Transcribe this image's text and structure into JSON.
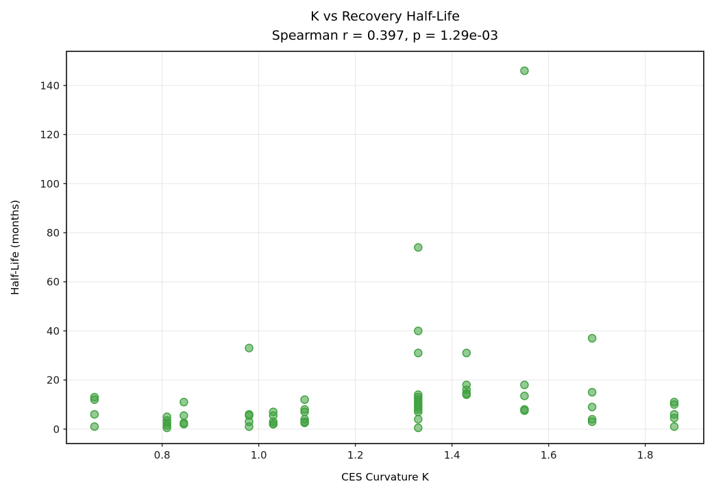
{
  "figure": {
    "background": "#ffffff",
    "title_line1": "K vs Recovery Half-Life",
    "title_line2": "Spearman r = 0.397, p = 1.29e-03"
  },
  "chart_data": {
    "type": "scatter",
    "title": "K vs Recovery Half-Life",
    "subtitle": "Spearman r = 0.397, p = 1.29e-03",
    "xlabel": "CES Curvature K",
    "ylabel": "Half-Life (months)",
    "xlim": [
      0.602,
      1.921
    ],
    "ylim": [
      -5.9,
      153.9
    ],
    "x_ticks": [
      0.8,
      1.0,
      1.2,
      1.4,
      1.6,
      1.8
    ],
    "x_tick_labels": [
      "0.8",
      "1.0",
      "1.2",
      "1.4",
      "1.6",
      "1.8"
    ],
    "y_ticks": [
      0,
      20,
      40,
      60,
      80,
      100,
      120,
      140
    ],
    "y_tick_labels": [
      "0",
      "20",
      "40",
      "60",
      "80",
      "100",
      "120",
      "140"
    ],
    "grid": true,
    "legend": false,
    "stats": {
      "spearman_r": 0.397,
      "p_value": "1.29e-03"
    },
    "marker": {
      "shape": "circle",
      "color": "#3ca03c",
      "fill_opacity": 0.55,
      "edge_opacity": 0.95,
      "radius_px": 5.5
    },
    "colors": {
      "grid": "#e6e6e6",
      "spine": "#222222",
      "tick": "#222222"
    },
    "points": [
      {
        "x": 0.66,
        "y": 13
      },
      {
        "x": 0.66,
        "y": 12
      },
      {
        "x": 0.66,
        "y": 6
      },
      {
        "x": 0.66,
        "y": 1
      },
      {
        "x": 0.81,
        "y": 5
      },
      {
        "x": 0.81,
        "y": 3.5
      },
      {
        "x": 0.81,
        "y": 2.5
      },
      {
        "x": 0.81,
        "y": 1.5
      },
      {
        "x": 0.81,
        "y": 0.5
      },
      {
        "x": 0.845,
        "y": 11
      },
      {
        "x": 0.845,
        "y": 5.5
      },
      {
        "x": 0.845,
        "y": 2.5
      },
      {
        "x": 0.845,
        "y": 2
      },
      {
        "x": 0.98,
        "y": 33
      },
      {
        "x": 0.98,
        "y": 6
      },
      {
        "x": 0.98,
        "y": 5.5
      },
      {
        "x": 0.98,
        "y": 3
      },
      {
        "x": 0.98,
        "y": 1
      },
      {
        "x": 1.03,
        "y": 7
      },
      {
        "x": 1.03,
        "y": 5.5
      },
      {
        "x": 1.03,
        "y": 3
      },
      {
        "x": 1.03,
        "y": 2
      },
      {
        "x": 1.03,
        "y": 2
      },
      {
        "x": 1.095,
        "y": 12
      },
      {
        "x": 1.095,
        "y": 8
      },
      {
        "x": 1.095,
        "y": 7
      },
      {
        "x": 1.095,
        "y": 4
      },
      {
        "x": 1.095,
        "y": 3
      },
      {
        "x": 1.095,
        "y": 2.5
      },
      {
        "x": 1.33,
        "y": 74
      },
      {
        "x": 1.33,
        "y": 40
      },
      {
        "x": 1.33,
        "y": 31
      },
      {
        "x": 1.33,
        "y": 14
      },
      {
        "x": 1.33,
        "y": 13
      },
      {
        "x": 1.33,
        "y": 12
      },
      {
        "x": 1.33,
        "y": 11
      },
      {
        "x": 1.33,
        "y": 10
      },
      {
        "x": 1.33,
        "y": 9
      },
      {
        "x": 1.33,
        "y": 8
      },
      {
        "x": 1.33,
        "y": 7
      },
      {
        "x": 1.33,
        "y": 4
      },
      {
        "x": 1.33,
        "y": 0.5
      },
      {
        "x": 1.43,
        "y": 31
      },
      {
        "x": 1.43,
        "y": 18
      },
      {
        "x": 1.43,
        "y": 16
      },
      {
        "x": 1.43,
        "y": 14.5
      },
      {
        "x": 1.43,
        "y": 14
      },
      {
        "x": 1.55,
        "y": 146
      },
      {
        "x": 1.55,
        "y": 18
      },
      {
        "x": 1.55,
        "y": 13.5
      },
      {
        "x": 1.55,
        "y": 8
      },
      {
        "x": 1.55,
        "y": 7.5
      },
      {
        "x": 1.69,
        "y": 37
      },
      {
        "x": 1.69,
        "y": 15
      },
      {
        "x": 1.69,
        "y": 9
      },
      {
        "x": 1.69,
        "y": 4
      },
      {
        "x": 1.69,
        "y": 3
      },
      {
        "x": 1.86,
        "y": 11
      },
      {
        "x": 1.86,
        "y": 10
      },
      {
        "x": 1.86,
        "y": 6
      },
      {
        "x": 1.86,
        "y": 4.5
      },
      {
        "x": 1.86,
        "y": 1
      }
    ]
  }
}
